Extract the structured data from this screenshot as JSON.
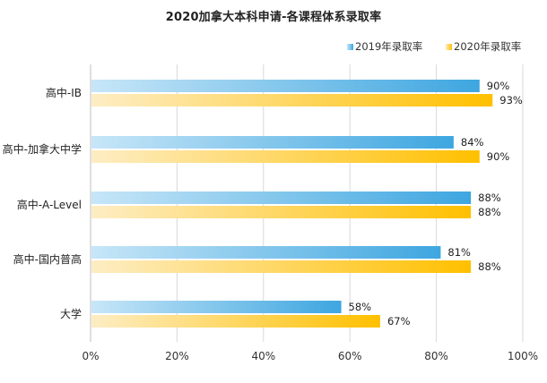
{
  "chart_data": {
    "type": "bar",
    "orientation": "horizontal",
    "title": "2020加拿大本科申请-各课程体系录取率",
    "categories": [
      "高中-IB",
      "高中-加拿大中学",
      "高中-A-Level",
      "高中-国内普高",
      "大学"
    ],
    "series": [
      {
        "name": "2019年录取率",
        "values": [
          90,
          84,
          88,
          81,
          58
        ],
        "labels": [
          "90%",
          "84%",
          "88%",
          "81%",
          "58%"
        ],
        "color_start": "#c7e6f8",
        "color_end": "#3ea6e0"
      },
      {
        "name": "2020年录取率",
        "values": [
          93,
          90,
          88,
          88,
          67
        ],
        "labels": [
          "93%",
          "90%",
          "88%",
          "88%",
          "67%"
        ],
        "color_start": "#fdedc4",
        "color_end": "#ffc000"
      }
    ],
    "x_ticks": [
      "0%",
      "20%",
      "40%",
      "60%",
      "80%",
      "100%"
    ],
    "xlim": [
      0,
      100
    ],
    "grid": "vertical",
    "legend": "top-right"
  }
}
